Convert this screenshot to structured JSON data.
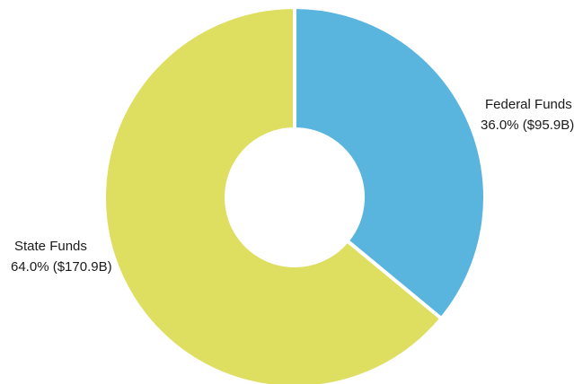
{
  "chart_data": {
    "type": "pie",
    "donut": true,
    "title": "",
    "slices": [
      {
        "label": "Federal Funds",
        "percent": 36.0,
        "value_label": "36.0% ($95.9B)",
        "value_billions": 95.9,
        "color": "#59b4de"
      },
      {
        "label": "State Funds",
        "percent": 64.0,
        "value_label": "64.0% ($170.9B)",
        "value_billions": 170.9,
        "color": "#dede60"
      }
    ],
    "start_angle": "12 o'clock",
    "direction": "clockwise",
    "separator_color": "#ffffff"
  }
}
